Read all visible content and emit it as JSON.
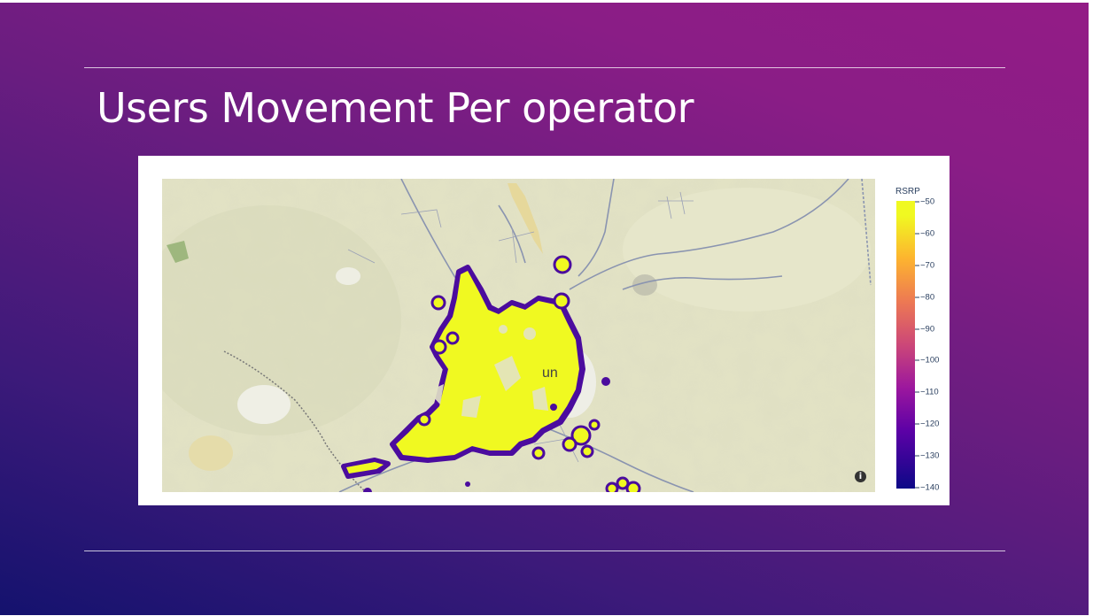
{
  "slide": {
    "title": "Users Movement Per operator"
  },
  "map": {
    "visible_label": "un",
    "info_icon": "info-icon"
  },
  "colorbar": {
    "title": "RSRP",
    "ticks": [
      "−50",
      "−60",
      "−70",
      "−80",
      "−90",
      "−100",
      "−110",
      "−120",
      "−130",
      "−140"
    ],
    "range": [
      -140,
      -50
    ],
    "colorscale": [
      "#0d0887",
      "#5c01a6",
      "#9c179e",
      "#cc4778",
      "#ed7953",
      "#fdb42f",
      "#f0f921"
    ]
  },
  "colors": {
    "slide_gradient_start": "#14126e",
    "slide_gradient_end": "#931c86",
    "heat_high": "#f0f921",
    "heat_edge": "#4b0c9e",
    "map_background": "#e3e3c5",
    "road_color": "#8a94b0"
  }
}
